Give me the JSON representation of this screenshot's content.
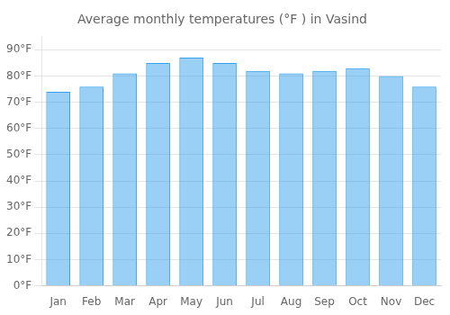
{
  "chart_data": {
    "type": "bar",
    "title": "Average monthly temperatures (°F ) in Vasind",
    "categories": [
      "Jan",
      "Feb",
      "Mar",
      "Apr",
      "May",
      "Jun",
      "Jul",
      "Aug",
      "Sep",
      "Oct",
      "Nov",
      "Dec"
    ],
    "values": [
      74,
      76,
      81,
      85,
      87,
      85,
      82,
      81,
      82,
      83,
      80,
      76
    ],
    "ylim": [
      0,
      95
    ],
    "yticks": [
      {
        "value": 0,
        "label": "0°F"
      },
      {
        "value": 10,
        "label": "10°F"
      },
      {
        "value": 20,
        "label": "20°F"
      },
      {
        "value": 30,
        "label": "30°F"
      },
      {
        "value": 40,
        "label": "40°F"
      },
      {
        "value": 50,
        "label": "50°F"
      },
      {
        "value": 60,
        "label": "60°F"
      },
      {
        "value": 70,
        "label": "70°F"
      },
      {
        "value": 80,
        "label": "80°F"
      },
      {
        "value": 90,
        "label": "90°F"
      }
    ],
    "grid": true
  }
}
